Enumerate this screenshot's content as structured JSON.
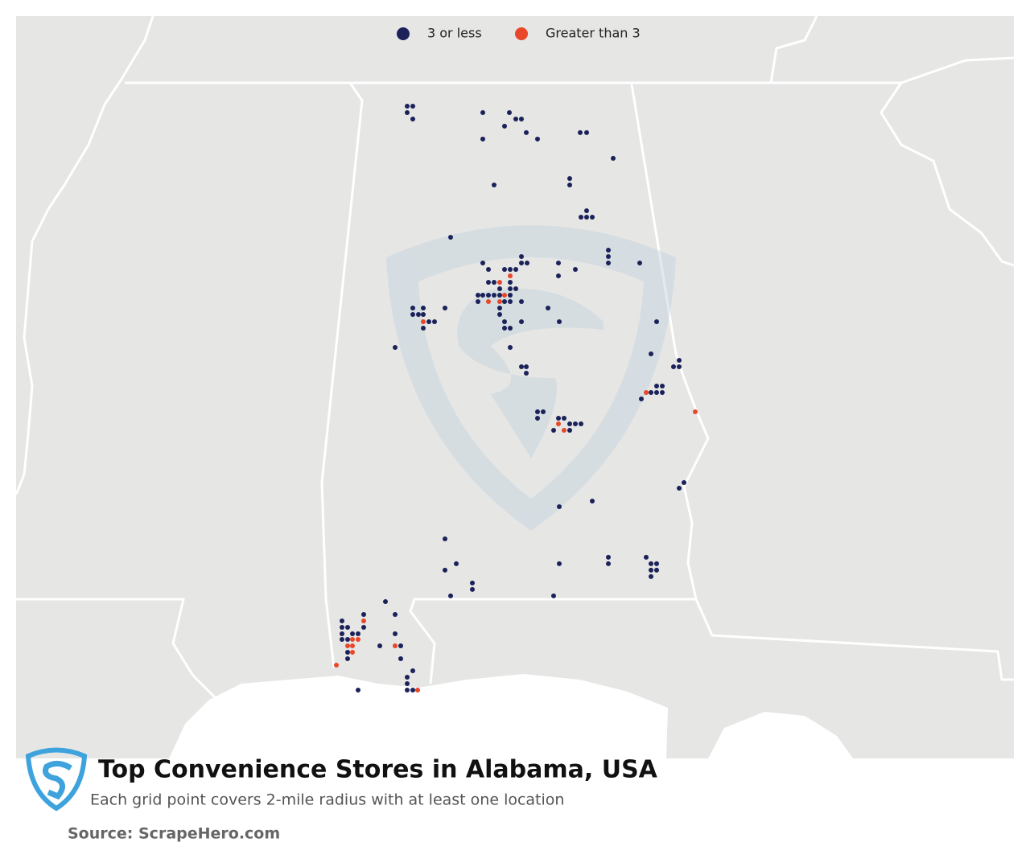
{
  "chart_data": {
    "type": "map",
    "title": "Top Convenience Stores in Alabama, USA",
    "subtitle": "Each grid point covers 2-mile radius with at least one location",
    "source": "Source: ScrapeHero.com",
    "series": [
      {
        "name": "3 or less",
        "color": "#1b2259",
        "lon": [
          -87.652,
          -87.596,
          -87.652,
          -87.596,
          -86.9,
          -86.636,
          -86.572,
          -86.516,
          -86.684,
          -86.468,
          -86.356,
          -86.9,
          -85.932,
          -85.868,
          -85.604,
          -86.036,
          -86.036,
          -86.788,
          -85.868,
          -85.924,
          -85.868,
          -85.812,
          -87.22,
          -85.652,
          -85.652,
          -85.652,
          -86.516,
          -86.516,
          -86.9,
          -86.148,
          -86.844,
          -86.684,
          -86.628,
          -86.572,
          -86.46,
          -85.98,
          -85.34,
          -86.148,
          -86.844,
          -86.788,
          -86.628,
          -86.732,
          -86.628,
          -86.572,
          -86.948,
          -86.9,
          -86.844,
          -86.788,
          -86.732,
          -86.628,
          -86.948,
          -86.684,
          -86.628,
          -86.516,
          -87.276,
          -86.732,
          -86.252,
          -87.596,
          -87.492,
          -86.732,
          -87.596,
          -87.54,
          -87.492,
          -87.436,
          -87.38,
          -86.684,
          -86.516,
          -86.14,
          -87.492,
          -86.684,
          -86.628,
          -85.172,
          -87.772,
          -86.628,
          -85.228,
          -86.516,
          -86.468,
          -85.004,
          -84.948,
          -84.948,
          -86.468,
          -85.172,
          -85.116,
          -85.228,
          -85.172,
          -85.116,
          -85.324,
          -86.356,
          -86.3,
          -86.356,
          -86.148,
          -86.092,
          -86.036,
          -85.98,
          -85.924,
          -86.196,
          -86.036,
          -84.9,
          -84.948,
          -85.812,
          -86.14,
          -87.276,
          -85.652,
          -85.276,
          -85.652,
          -85.228,
          -85.172,
          -87.164,
          -86.14,
          -87.276,
          -85.228,
          -85.172,
          -85.228,
          -87.004,
          -87.004,
          -87.22,
          -86.196,
          -87.868,
          -88.084,
          -87.772,
          -88.3,
          -88.3,
          -88.244,
          -88.084,
          -87.772,
          -88.3,
          -88.196,
          -88.14,
          -88.3,
          -88.244,
          -87.924,
          -87.716,
          -88.244,
          -88.244,
          -87.716,
          -87.596,
          -87.652,
          -87.652,
          -88.14,
          -87.652,
          -87.596
        ],
        "lat": [
          34.819,
          34.819,
          34.769,
          34.719,
          34.769,
          34.769,
          34.719,
          34.719,
          34.663,
          34.613,
          34.563,
          34.563,
          34.613,
          34.613,
          34.413,
          34.256,
          34.206,
          34.206,
          34.006,
          33.956,
          33.956,
          33.956,
          33.8,
          33.7,
          33.65,
          33.6,
          33.65,
          33.6,
          33.6,
          33.6,
          33.55,
          33.55,
          33.55,
          33.55,
          33.6,
          33.55,
          33.6,
          33.5,
          33.45,
          33.45,
          33.45,
          33.4,
          33.4,
          33.4,
          33.35,
          33.35,
          33.35,
          33.35,
          33.35,
          33.35,
          33.3,
          33.3,
          33.3,
          33.3,
          33.25,
          33.25,
          33.25,
          33.25,
          33.25,
          33.2,
          33.2,
          33.2,
          33.2,
          33.144,
          33.144,
          33.144,
          33.144,
          33.144,
          33.094,
          33.094,
          33.094,
          33.144,
          32.944,
          32.944,
          32.894,
          32.794,
          32.794,
          32.794,
          32.844,
          32.794,
          32.744,
          32.644,
          32.644,
          32.594,
          32.594,
          32.594,
          32.544,
          32.444,
          32.444,
          32.394,
          32.394,
          32.394,
          32.35,
          32.35,
          32.35,
          32.3,
          32.3,
          31.894,
          31.85,
          31.75,
          31.706,
          31.456,
          31.313,
          31.313,
          31.263,
          31.263,
          31.263,
          31.263,
          31.263,
          31.213,
          31.213,
          31.213,
          31.163,
          31.113,
          31.063,
          31.013,
          31.013,
          30.969,
          30.869,
          30.869,
          30.819,
          30.769,
          30.769,
          30.769,
          30.719,
          30.719,
          30.719,
          30.719,
          30.675,
          30.675,
          30.625,
          30.625,
          30.575,
          30.525,
          30.525,
          30.431,
          30.381,
          30.331,
          30.281,
          30.281,
          30.281
        ]
      },
      {
        "name": "Greater than 3",
        "color": "#e8472a",
        "lon": [
          -86.628,
          -86.732,
          -86.684,
          -86.844,
          -86.732,
          -87.492,
          -85.276,
          -84.788,
          -86.148,
          -86.092,
          -88.084,
          -88.196,
          -88.14,
          -88.244,
          -88.196,
          -87.772,
          -88.196,
          -88.356,
          -87.548
        ],
        "lat": [
          33.5,
          33.45,
          33.35,
          33.3,
          33.3,
          33.144,
          32.594,
          32.444,
          32.35,
          32.3,
          30.819,
          30.675,
          30.675,
          30.625,
          30.625,
          30.625,
          30.575,
          30.475,
          30.281
        ]
      }
    ]
  }
}
